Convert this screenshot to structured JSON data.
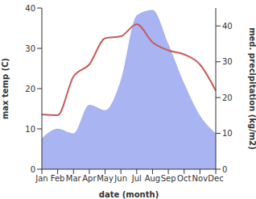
{
  "chart_data": {
    "type": "line",
    "x_label": "date (month)",
    "y_label": "max temp (C)",
    "y2_label": "med. precipitation (kg/m2)",
    "categories": [
      "Jan",
      "Feb",
      "Mar",
      "Apr",
      "May",
      "Jun",
      "Jul",
      "Aug",
      "Sep",
      "Oct",
      "Nov",
      "Dec"
    ],
    "ylim": [
      0,
      40
    ],
    "yticks": [
      0,
      10,
      20,
      30,
      40
    ],
    "y2lim": [
      0,
      45
    ],
    "y2ticks": [
      0,
      10,
      20,
      30,
      40
    ],
    "grid": false,
    "series": [
      {
        "type": "area",
        "axis": "y2",
        "color": "#a9b4f2",
        "values": [
          8.6,
          11.3,
          10,
          18,
          16.5,
          25,
          43,
          44.5,
          35,
          24,
          15,
          10
        ]
      },
      {
        "type": "line",
        "color": "#c85a5a",
        "values": [
          13.6,
          13.4,
          23,
          26,
          32.5,
          33,
          36,
          31.5,
          29.5,
          28.5,
          26,
          19.5
        ]
      }
    ]
  }
}
